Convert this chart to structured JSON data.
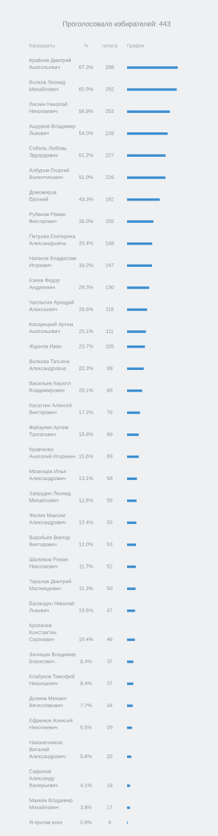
{
  "chart_data": {
    "type": "bar",
    "orientation": "horizontal",
    "title": "Проголосовало избирателей: 443",
    "annotations": [
      "Кандидаты",
      "%",
      "голоса",
      "График",
      "67.3%",
      "65.9%",
      "56.9%",
      "54.0%",
      "51.2%",
      "51.0%",
      "43.3%",
      "35.0%",
      "33.4%",
      "33.2%",
      "29.3%",
      "26.6%",
      "25.1%",
      "23.7%",
      "22.3%",
      "20.1%",
      "17.2%",
      "15.6%",
      "15.6%",
      "13.1%",
      "12.6%",
      "12.4%",
      "12.0%",
      "11.7%",
      "11.3%",
      "10.6%",
      "10.4%",
      "8.4%",
      "8.4%",
      "7.7%",
      "6.5%",
      "5.6%",
      "4.1%",
      "3.8%",
      "0.9%"
    ],
    "categories": [
      "Крайнев Дмитрий Анатольевич",
      "Волков Леонид Михайлович",
      "Ляскин Николай Николаевич",
      "Ашурков Владимир Львович",
      "Соболь Любовь Эдуардовна",
      "Албуров Георгий Валентинович",
      "Доможиров Евгений",
      "Рубанов Роман Викторович",
      "Петрова Екатерина Александровна",
      "Наганов Владислав Игоревич",
      "Езеев Федор Андреевич",
      "Чаплыгин Аркадий Алексеевич",
      "Косарецкий Артем Анатольевич",
      "Жданов Иван",
      "Волкова Татьяна Александровна",
      "Васильев Кирилл Владимирович",
      "Касаткин Алексей Викторович",
      "Файзулин Артём Талгатович",
      "Кравченко Анатолий Игоревич",
      "Мезенцев Илья Александрович",
      "Запрудин Леонид Михайлович",
      "Жилин Максим Александрович",
      "Воробьев Виктор Викторович",
      "Шалимов Роман Николаевич",
      "Таралов Дмитрий Магомедович",
      "Баландин Николай Львович",
      "Кропачев Константин Сергеевич",
      "Залищак Владимир Борисович",
      "Клабуков Тимофей Николаевич",
      "Долиев Михаил Вячеславович",
      "Ефремов Алексей Николаевич",
      "Наконечников Виталий Александрович",
      "Сафонов Александр Валерьевич",
      "Макеев Владимир Михайлович",
      "Я против всех"
    ],
    "values": [
      298,
      292,
      252,
      239,
      227,
      226,
      192,
      155,
      148,
      147,
      130,
      118,
      111,
      105,
      99,
      89,
      76,
      69,
      69,
      58,
      56,
      55,
      53,
      52,
      50,
      47,
      46,
      37,
      37,
      34,
      29,
      25,
      18,
      17,
      4
    ],
    "data_labels": true,
    "color": "#3b8ed0"
  }
}
